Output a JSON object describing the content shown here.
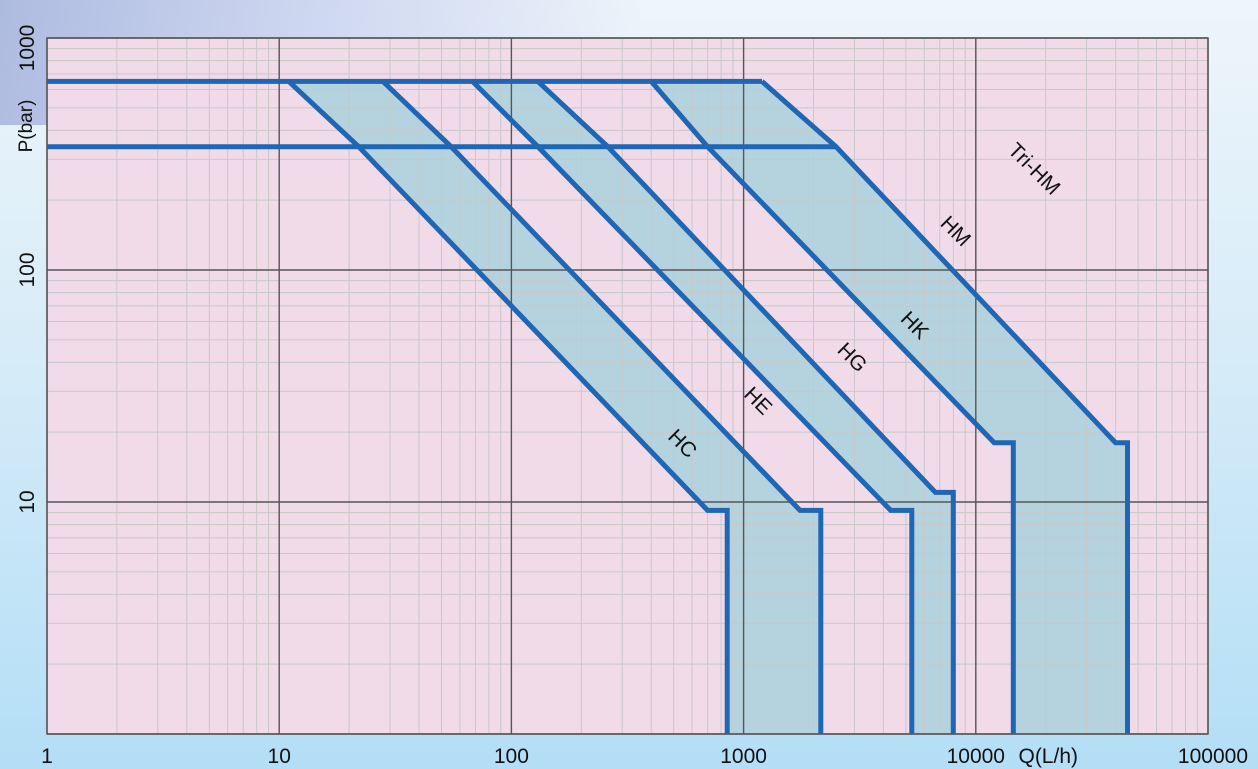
{
  "chart_data": {
    "type": "line",
    "xlabel": "Q(L/h)",
    "ylabel": "P(bar)",
    "x_scale": "log",
    "y_scale": "log",
    "xlim": [
      1,
      100000
    ],
    "ylim": [
      1,
      1000
    ],
    "grid": true,
    "x_ticks": [
      {
        "value": 1,
        "label": "1"
      },
      {
        "value": 10,
        "label": "10"
      },
      {
        "value": 100,
        "label": "100"
      },
      {
        "value": 1000,
        "label": "1000"
      },
      {
        "value": 10000,
        "label": "10000"
      },
      {
        "value": 100000,
        "label": "100000"
      }
    ],
    "y_ticks": [
      {
        "value": 10,
        "label": "10"
      },
      {
        "value": 100,
        "label": "100"
      },
      {
        "value": 1000,
        "label": "1000"
      }
    ],
    "colors": {
      "plot_background": "#f2dbe8",
      "band_fill": "#b5d3de",
      "curve": "#1f66b4",
      "grid_major": "#555555",
      "grid_minor": "#c8c8c8"
    },
    "series": [
      {
        "name": "HC",
        "points": [
          [
            11,
            650
          ],
          [
            22,
            340
          ],
          [
            700,
            9.2
          ],
          [
            850,
            9.2
          ],
          [
            850,
            1
          ]
        ]
      },
      {
        "name": "HE",
        "points": [
          [
            28,
            650
          ],
          [
            55,
            340
          ],
          [
            1750,
            9.2
          ],
          [
            2150,
            9.2
          ],
          [
            2150,
            1
          ]
        ]
      },
      {
        "name": "HG",
        "points": [
          [
            68,
            650
          ],
          [
            130,
            340
          ],
          [
            4300,
            9.2
          ],
          [
            5300,
            9.2
          ],
          [
            5300,
            1
          ]
        ]
      },
      {
        "name": "HK",
        "points": [
          [
            130,
            650
          ],
          [
            260,
            340
          ],
          [
            6700,
            11
          ],
          [
            8000,
            11
          ],
          [
            8000,
            1
          ]
        ]
      },
      {
        "name": "HM",
        "points": [
          [
            400,
            650
          ],
          [
            700,
            340
          ],
          [
            12000,
            18
          ],
          [
            14500,
            18
          ],
          [
            14500,
            1
          ]
        ]
      },
      {
        "name": "Tri-HM",
        "points": [
          [
            1200,
            650
          ],
          [
            2500,
            340
          ],
          [
            40000,
            18
          ],
          [
            45000,
            18
          ],
          [
            45000,
            1
          ]
        ]
      }
    ],
    "horizontal_lines": [
      {
        "y": 650,
        "x_from": 1,
        "x_to": 1200
      },
      {
        "y": 340,
        "x_from": 1,
        "x_to": 2500
      }
    ],
    "bands": [
      {
        "from": "HC",
        "to": "HE"
      },
      {
        "from": "HG",
        "to": "HK"
      },
      {
        "from": "HM",
        "to": "Tri-HM"
      }
    ],
    "curve_labels": [
      {
        "series": "HC",
        "text": "HC",
        "x": 520,
        "y": 17
      },
      {
        "series": "HE",
        "text": "HE",
        "x": 1100,
        "y": 26
      },
      {
        "series": "HG",
        "text": "HG",
        "x": 2800,
        "y": 40
      },
      {
        "series": "HK",
        "text": "HK",
        "x": 5200,
        "y": 55
      },
      {
        "series": "HM",
        "text": "HM",
        "x": 7800,
        "y": 140
      },
      {
        "series": "Tri-HM",
        "text": "Tri-HM",
        "x": 17000,
        "y": 260
      }
    ]
  }
}
